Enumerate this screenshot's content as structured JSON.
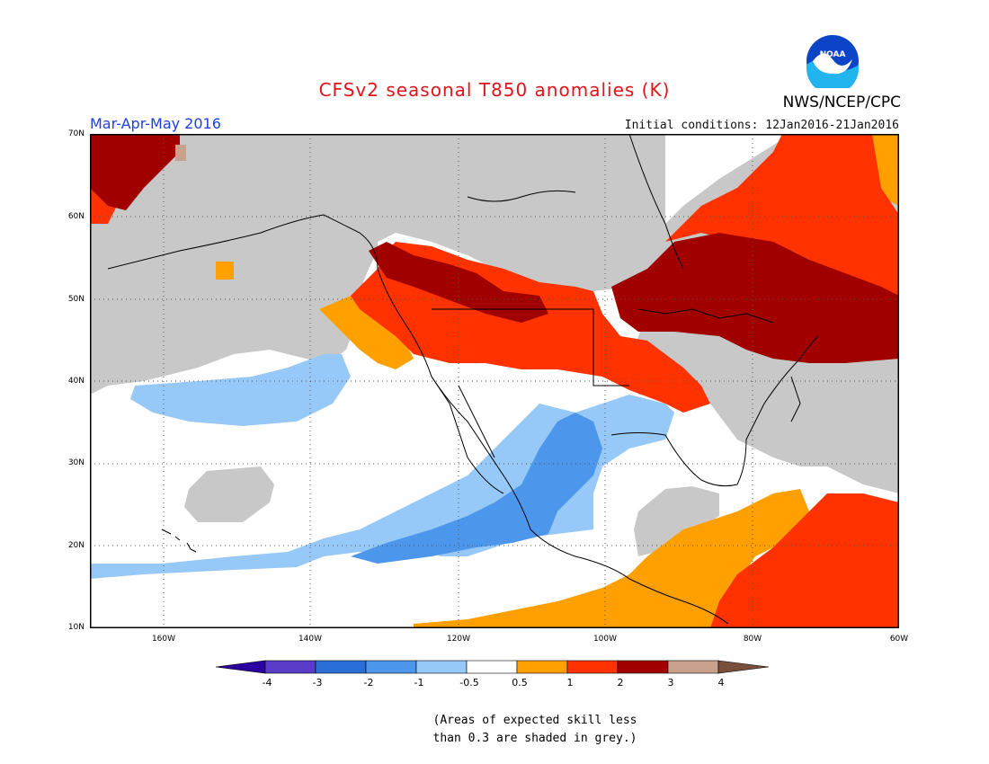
{
  "header": {
    "title": "CFSv2 seasonal T850 anomalies (K)",
    "period": "Mar-Apr-May 2016",
    "initial_conditions": "Initial conditions: 12Jan2016-21Jan2016",
    "agency": "NWS/NCEP/CPC",
    "logo_text": "NOAA"
  },
  "axes": {
    "lat_labels": [
      "70N",
      "60N",
      "50N",
      "40N",
      "30N",
      "20N",
      "10N"
    ],
    "lon_labels": [
      "160W",
      "140W",
      "120W",
      "100W",
      "80W",
      "60W"
    ]
  },
  "colorbar": {
    "labels": [
      "-4",
      "-3",
      "-2",
      "-1",
      "-0.5",
      "0.5",
      "1",
      "2",
      "3",
      "4"
    ],
    "colors": [
      "#2a00a0",
      "#5a3cc8",
      "#2a6ed8",
      "#4c96ec",
      "#96c8f8",
      "#ffffff",
      "#ffa000",
      "#ff3200",
      "#a00000",
      "#c8a08c",
      "#78503c"
    ],
    "skill_grey": "#c8c8c8"
  },
  "note": {
    "line1": "(Areas of expected skill less",
    "line2": "than 0.3 are shaded in grey.)"
  }
}
